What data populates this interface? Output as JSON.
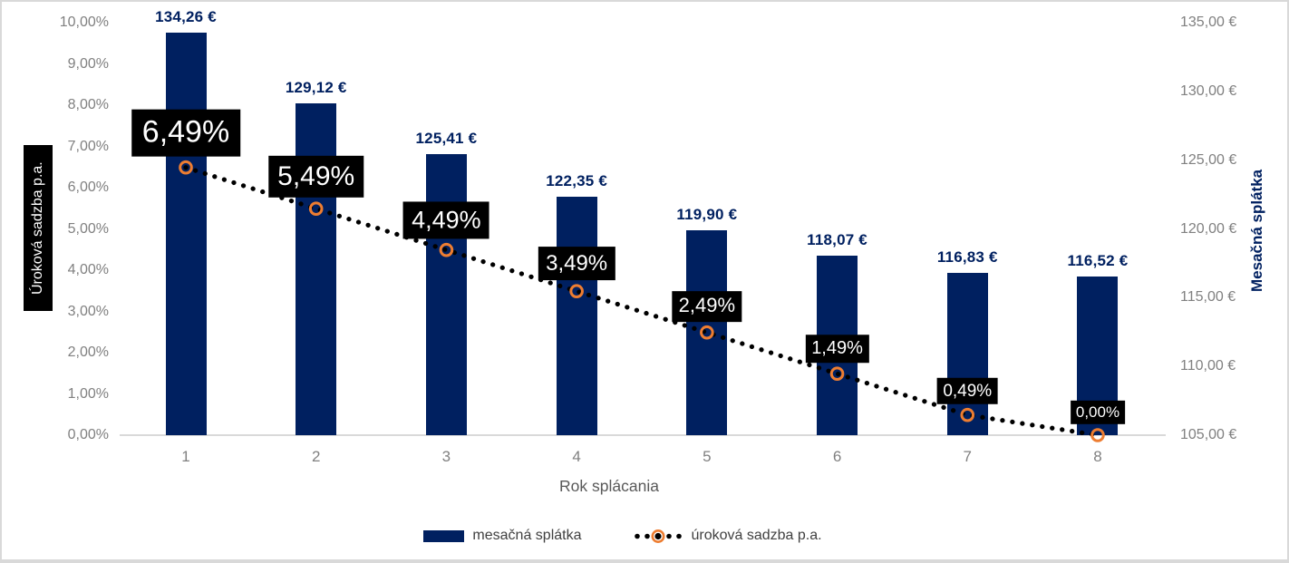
{
  "colors": {
    "bar": "#002060",
    "bar_label": "#002060",
    "marker_ring": "#ED7D31",
    "dotted_line": "#000000",
    "tick_label": "#808080",
    "axis_line": "#D9D9D9",
    "page_border": "#D9D9D9",
    "callout_bg": "#000000",
    "callout_fg": "#FFFFFF",
    "left_axis_title_bg": "#000000",
    "left_axis_title_fg": "#FFFFFF",
    "right_axis_title": "#002060",
    "x_axis_title": "#595959",
    "legend_text": "#404040"
  },
  "chart_data": {
    "type": "combo",
    "categories": [
      "1",
      "2",
      "3",
      "4",
      "5",
      "6",
      "7",
      "8"
    ],
    "series": [
      {
        "name": "mesačná splátka",
        "chart_type": "bar",
        "axis": "right",
        "values": [
          134.26,
          129.12,
          125.41,
          122.35,
          119.9,
          118.07,
          116.83,
          116.52
        ],
        "data_labels": [
          "134,26 €",
          "129,12 €",
          "125,41 €",
          "122,35 €",
          "119,90 €",
          "118,07 €",
          "116,83 €",
          "116,52 €"
        ]
      },
      {
        "name": "úroková sadzba p.a.",
        "chart_type": "dotted-line",
        "axis": "left",
        "values": [
          6.49,
          5.49,
          4.49,
          3.49,
          2.49,
          1.49,
          0.49,
          0.0
        ],
        "data_labels": [
          "6,49%",
          "5,49%",
          "4,49%",
          "3,49%",
          "2,49%",
          "1,49%",
          "0,49%",
          "0,00%"
        ]
      }
    ],
    "left_axis": {
      "title": "Úroková sadzba p.a.",
      "min": 0,
      "max": 10,
      "step": 1,
      "tick_labels": [
        "10,00%",
        "9,00%",
        "8,00%",
        "7,00%",
        "6,00%",
        "5,00%",
        "4,00%",
        "3,00%",
        "2,00%",
        "1,00%",
        "0,00%"
      ]
    },
    "right_axis": {
      "title": "Mesačná splátka",
      "min": 105,
      "max": 135,
      "step": 5,
      "tick_labels": [
        "135,00 €",
        "130,00 €",
        "125,00 €",
        "120,00 €",
        "115,00 €",
        "110,00 €",
        "105,00 €"
      ]
    },
    "x_axis": {
      "title": "Rok splácania"
    },
    "legend": [
      {
        "label": "mesačná splátka",
        "swatch": "bar"
      },
      {
        "label": "úroková sadzba p.a.",
        "swatch": "dotted-line-marker"
      }
    ],
    "grid": false,
    "legend_position": "bottom"
  }
}
